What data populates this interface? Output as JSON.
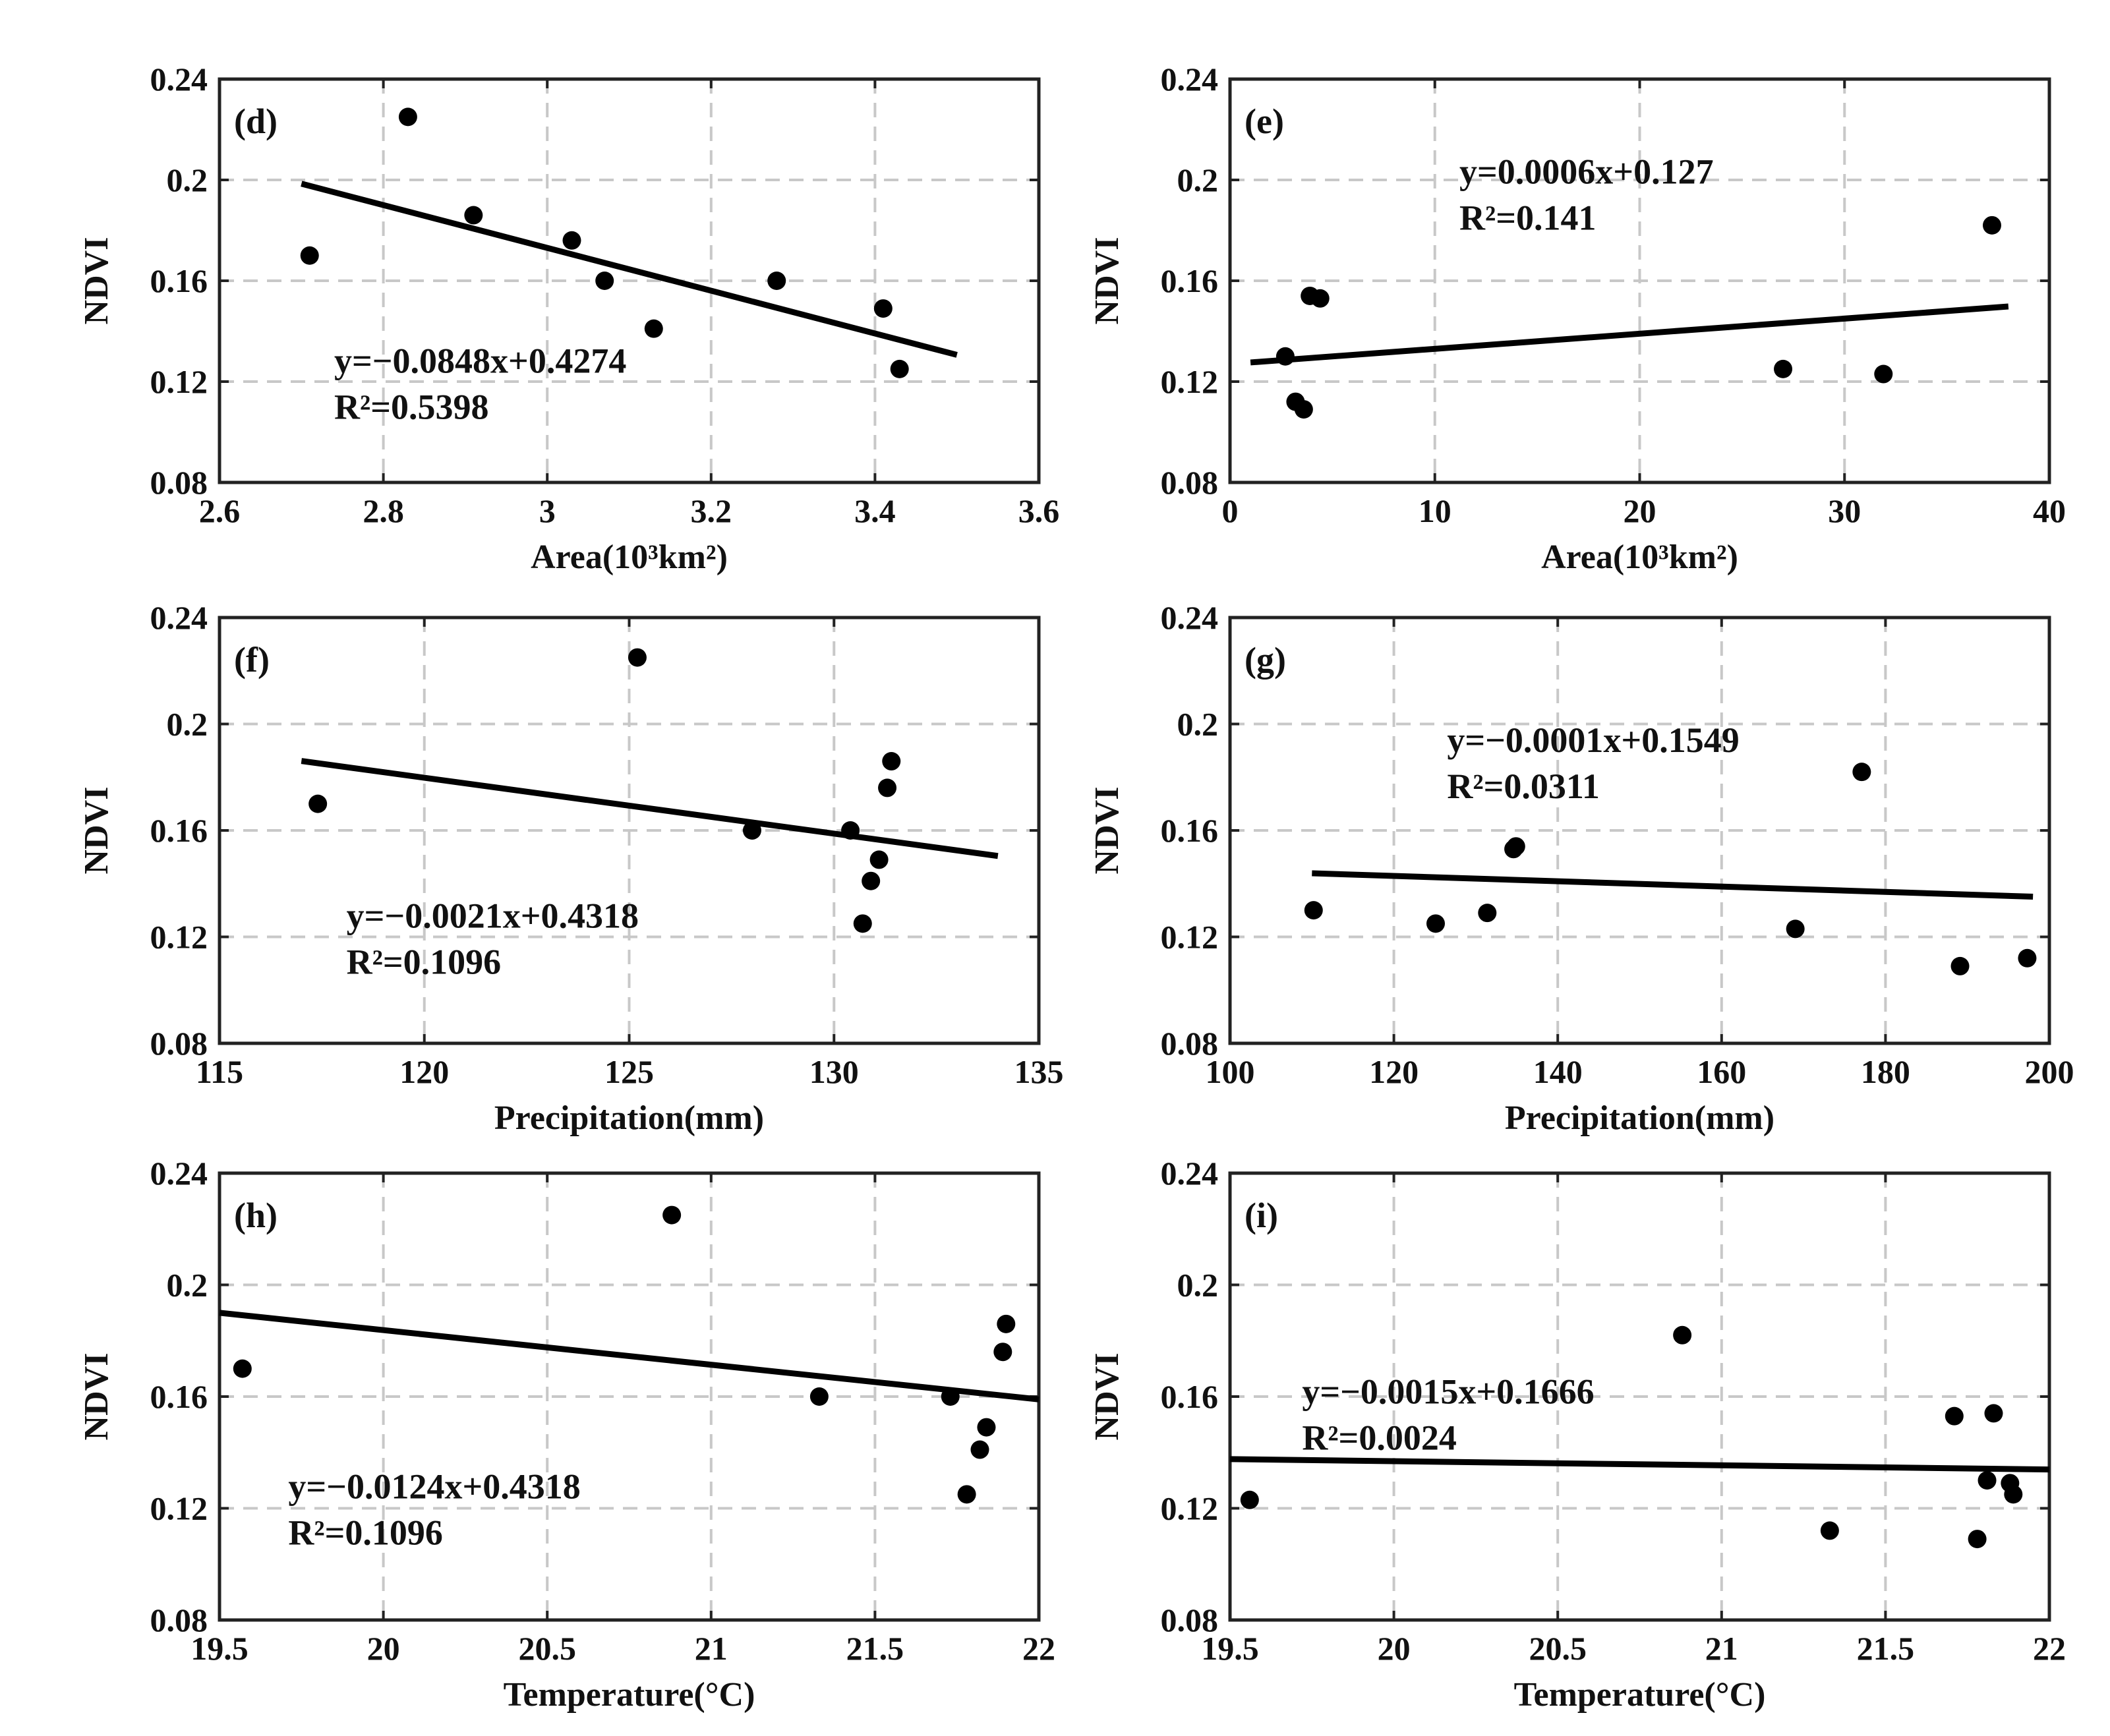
{
  "figure": {
    "y_axis_label": "NDVI"
  },
  "chart_data": [
    {
      "id": "d",
      "type": "scatter",
      "panel_label": "(d)",
      "xlabel": "Area(10³km²)",
      "ylabel": "NDVI",
      "xlim": [
        2.6,
        3.6
      ],
      "ylim": [
        0.08,
        0.24
      ],
      "xticks": [
        2.6,
        2.8,
        3,
        3.2,
        3.4,
        3.6
      ],
      "xtick_labels": [
        "2.6",
        "2.8",
        "3",
        "3.2",
        "3.4",
        "3.6"
      ],
      "yticks": [
        0.08,
        0.12,
        0.16,
        0.2,
        0.24
      ],
      "ytick_labels": [
        "0.08",
        "0.12",
        "0.16",
        "0.2",
        "0.24"
      ],
      "grid": true,
      "points": [
        [
          2.71,
          0.17
        ],
        [
          2.83,
          0.225
        ],
        [
          2.91,
          0.186
        ],
        [
          3.03,
          0.176
        ],
        [
          3.07,
          0.16
        ],
        [
          3.13,
          0.141
        ],
        [
          3.28,
          0.16
        ],
        [
          3.41,
          0.149
        ],
        [
          3.43,
          0.125
        ]
      ],
      "fit_line": [
        [
          2.7,
          0.1985
        ],
        [
          3.5,
          0.1306
        ]
      ],
      "equation": "y=−0.0848x+0.4274",
      "r2_text": "R²=0.5398",
      "annotation_anchor": [
        2.74,
        0.1235
      ]
    },
    {
      "id": "e",
      "type": "scatter",
      "panel_label": "(e)",
      "xlabel": "Area(10³km²)",
      "ylabel": "NDVI",
      "xlim": [
        0,
        40
      ],
      "ylim": [
        0.08,
        0.24
      ],
      "xticks": [
        0,
        10,
        20,
        30,
        40
      ],
      "xtick_labels": [
        "0",
        "10",
        "20",
        "30",
        "40"
      ],
      "yticks": [
        0.08,
        0.12,
        0.16,
        0.2,
        0.24
      ],
      "ytick_labels": [
        "0.08",
        "0.12",
        "0.16",
        "0.2",
        "0.24"
      ],
      "grid": true,
      "points": [
        [
          2.7,
          0.13
        ],
        [
          3.2,
          0.112
        ],
        [
          3.6,
          0.109
        ],
        [
          3.9,
          0.154
        ],
        [
          4.4,
          0.153
        ],
        [
          27,
          0.125
        ],
        [
          31.9,
          0.123
        ],
        [
          37.2,
          0.182
        ]
      ],
      "fit_line": [
        [
          1,
          0.1276
        ],
        [
          38,
          0.1498
        ]
      ],
      "equation": "y=0.0006x+0.127",
      "r2_text": "R²=0.141",
      "annotation_anchor": [
        11.2,
        0.1985
      ]
    },
    {
      "id": "f",
      "type": "scatter",
      "panel_label": "(f)",
      "xlabel": "Precipitation(mm)",
      "ylabel": "NDVI",
      "xlim": [
        115,
        135
      ],
      "ylim": [
        0.08,
        0.24
      ],
      "xticks": [
        115,
        120,
        125,
        130,
        135
      ],
      "xtick_labels": [
        "115",
        "120",
        "125",
        "130",
        "135"
      ],
      "yticks": [
        0.08,
        0.12,
        0.16,
        0.2,
        0.24
      ],
      "ytick_labels": [
        "0.08",
        "0.12",
        "0.16",
        "0.2",
        "0.24"
      ],
      "grid": true,
      "points": [
        [
          117.4,
          0.17
        ],
        [
          125.2,
          0.225
        ],
        [
          128,
          0.16
        ],
        [
          130.4,
          0.16
        ],
        [
          130.7,
          0.125
        ],
        [
          130.9,
          0.141
        ],
        [
          131.1,
          0.149
        ],
        [
          131.3,
          0.176
        ],
        [
          131.4,
          0.186
        ]
      ],
      "fit_line": [
        [
          117,
          0.1861
        ],
        [
          134,
          0.1504
        ]
      ],
      "equation": "y=−0.0021x+0.4318",
      "r2_text": "R²=0.1096",
      "annotation_anchor": [
        118.1,
        0.1235
      ]
    },
    {
      "id": "g",
      "type": "scatter",
      "panel_label": "(g)",
      "xlabel": "Precipitation(mm)",
      "ylabel": "NDVI",
      "xlim": [
        100,
        200
      ],
      "ylim": [
        0.08,
        0.24
      ],
      "xticks": [
        100,
        120,
        140,
        160,
        180,
        200
      ],
      "xtick_labels": [
        "100",
        "120",
        "140",
        "160",
        "180",
        "200"
      ],
      "yticks": [
        0.08,
        0.12,
        0.16,
        0.2,
        0.24
      ],
      "ytick_labels": [
        "0.08",
        "0.12",
        "0.16",
        "0.2",
        "0.24"
      ],
      "grid": true,
      "points": [
        [
          110.2,
          0.13
        ],
        [
          125.1,
          0.125
        ],
        [
          131.4,
          0.129
        ],
        [
          134.6,
          0.153
        ],
        [
          134.9,
          0.154
        ],
        [
          169,
          0.123
        ],
        [
          177.1,
          0.182
        ],
        [
          189.1,
          0.109
        ],
        [
          197.3,
          0.112
        ]
      ],
      "fit_line": [
        [
          110,
          0.1439
        ],
        [
          198,
          0.1351
        ]
      ],
      "equation": "y=−0.0001x+0.1549",
      "r2_text": "R²=0.0311",
      "annotation_anchor": [
        126.5,
        0.1895
      ]
    },
    {
      "id": "h",
      "type": "scatter",
      "panel_label": "(h)",
      "xlabel": "Temperature(°C)",
      "ylabel": "NDVI",
      "xlim": [
        19.5,
        22
      ],
      "ylim": [
        0.08,
        0.24
      ],
      "xticks": [
        19.5,
        20,
        20.5,
        21,
        21.5,
        22
      ],
      "xtick_labels": [
        "19.5",
        "20",
        "20.5",
        "21",
        "21.5",
        "22"
      ],
      "yticks": [
        0.08,
        0.12,
        0.16,
        0.2,
        0.24
      ],
      "ytick_labels": [
        "0.08",
        "0.12",
        "0.16",
        "0.2",
        "0.24"
      ],
      "grid": true,
      "points": [
        [
          19.57,
          0.17
        ],
        [
          20.88,
          0.225
        ],
        [
          21.33,
          0.16
        ],
        [
          21.73,
          0.16
        ],
        [
          21.78,
          0.125
        ],
        [
          21.82,
          0.141
        ],
        [
          21.84,
          0.149
        ],
        [
          21.89,
          0.176
        ],
        [
          21.9,
          0.186
        ]
      ],
      "fit_line": [
        [
          19.5,
          0.19
        ],
        [
          22,
          0.159
        ]
      ],
      "equation": "y=−0.0124x+0.4318",
      "r2_text": "R²=0.1096",
      "annotation_anchor": [
        19.71,
        0.1235
      ]
    },
    {
      "id": "i",
      "type": "scatter",
      "panel_label": "(i)",
      "xlabel": "Temperature(°C)",
      "ylabel": "NDVI",
      "xlim": [
        19.5,
        22
      ],
      "ylim": [
        0.08,
        0.24
      ],
      "xticks": [
        19.5,
        20,
        20.5,
        21,
        21.5,
        22
      ],
      "xtick_labels": [
        "19.5",
        "20",
        "20.5",
        "21",
        "21.5",
        "22"
      ],
      "yticks": [
        0.08,
        0.12,
        0.16,
        0.2,
        0.24
      ],
      "ytick_labels": [
        "0.08",
        "0.12",
        "0.16",
        "0.2",
        "0.24"
      ],
      "grid": true,
      "points": [
        [
          19.56,
          0.123
        ],
        [
          20.88,
          0.182
        ],
        [
          21.33,
          0.112
        ],
        [
          21.71,
          0.153
        ],
        [
          21.78,
          0.109
        ],
        [
          21.81,
          0.13
        ],
        [
          21.83,
          0.154
        ],
        [
          21.88,
          0.129
        ],
        [
          21.89,
          0.125
        ]
      ],
      "fit_line": [
        [
          19.5,
          0.1376
        ],
        [
          22,
          0.1339
        ]
      ],
      "equation": "y=−0.0015x+0.1666",
      "r2_text": "R²=0.0024",
      "annotation_anchor": [
        19.72,
        0.1575
      ]
    }
  ]
}
